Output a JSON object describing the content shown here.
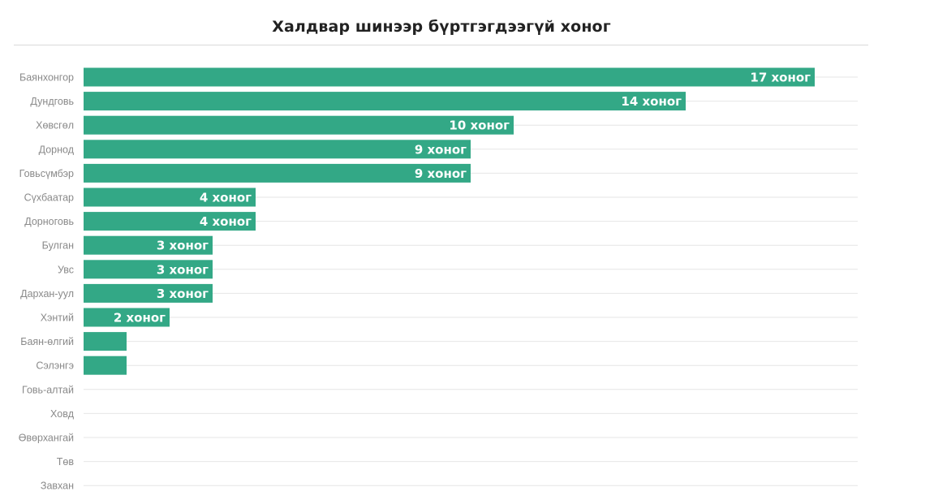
{
  "chart_data": {
    "type": "bar",
    "orientation": "horizontal",
    "title": "Халдвар шинээр бүртгэгдээгүй хоног",
    "categories": [
      "Баянхонгор",
      "Дундговь",
      "Хөвсгөл",
      "Дорнод",
      "Говьсүмбэр",
      "Сүхбаатар",
      "Дорноговь",
      "Булган",
      "Увс",
      "Дархан-уул",
      "Хэнтий",
      "Баян-өлгий",
      "Сэлэнгэ",
      "Говь-алтай",
      "Ховд",
      "Өвөрхангай",
      "Төв",
      "Завхан"
    ],
    "values": [
      17,
      14,
      10,
      9,
      9,
      4,
      4,
      3,
      3,
      3,
      2,
      1,
      1,
      0,
      0,
      0,
      0,
      0
    ],
    "data_labels": [
      "17 хоног",
      "14 хоног",
      "10 хоног",
      "9 хоног",
      "9 хоног",
      "4 хоног",
      "4 хоног",
      "3 хоног",
      "3 хоног",
      "3 хоног",
      "2 хоног",
      "",
      "",
      "",
      "",
      "",
      "",
      ""
    ],
    "xlim": [
      0,
      18
    ],
    "grid": true,
    "bar_color": "#33a886",
    "xlabel": "",
    "ylabel": ""
  }
}
